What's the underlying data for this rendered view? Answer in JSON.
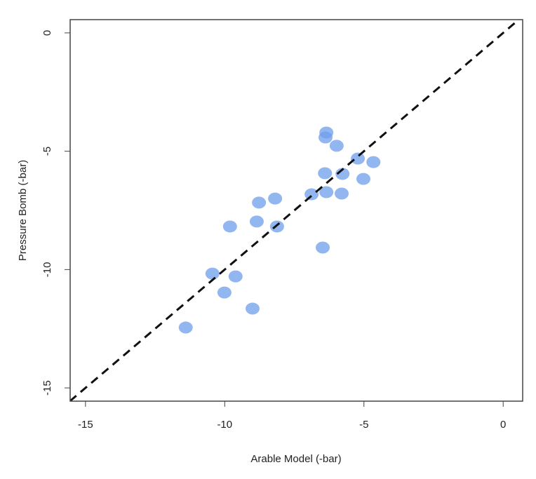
{
  "chart_data": {
    "type": "scatter",
    "x_label": "Arable Model (-bar)",
    "y_label": "Pressure Bomb (-bar)",
    "x": [
      -11.4,
      -10.44,
      -10.01,
      -9.61,
      -9.0,
      -9.81,
      -8.85,
      -8.77,
      -8.19,
      -8.12,
      -6.88,
      -6.48,
      -6.4,
      -6.35,
      -6.38,
      -6.35,
      -5.98,
      -5.77,
      -5.8,
      -5.22,
      -5.02,
      -4.66
    ],
    "series": [
      {
        "color": "#6d9eeb",
        "values": [
          -12.45,
          -10.17,
          -10.97,
          -10.29,
          -11.65,
          -8.18,
          -7.97,
          -7.17,
          -7.0,
          -8.18,
          -6.82,
          -9.07,
          -5.93,
          -6.73,
          -4.42,
          -4.21,
          -4.77,
          -5.96,
          -6.79,
          -5.31,
          -6.17,
          -5.46
        ]
      }
    ],
    "xlim": [
      -15.55,
      0.7
    ],
    "ylim": [
      -15.56,
      0.56
    ],
    "xticks": [
      -15,
      -10,
      -5,
      0
    ],
    "yticks": [
      -15,
      -10,
      -5,
      0
    ],
    "identity_line": true,
    "grid": false
  }
}
